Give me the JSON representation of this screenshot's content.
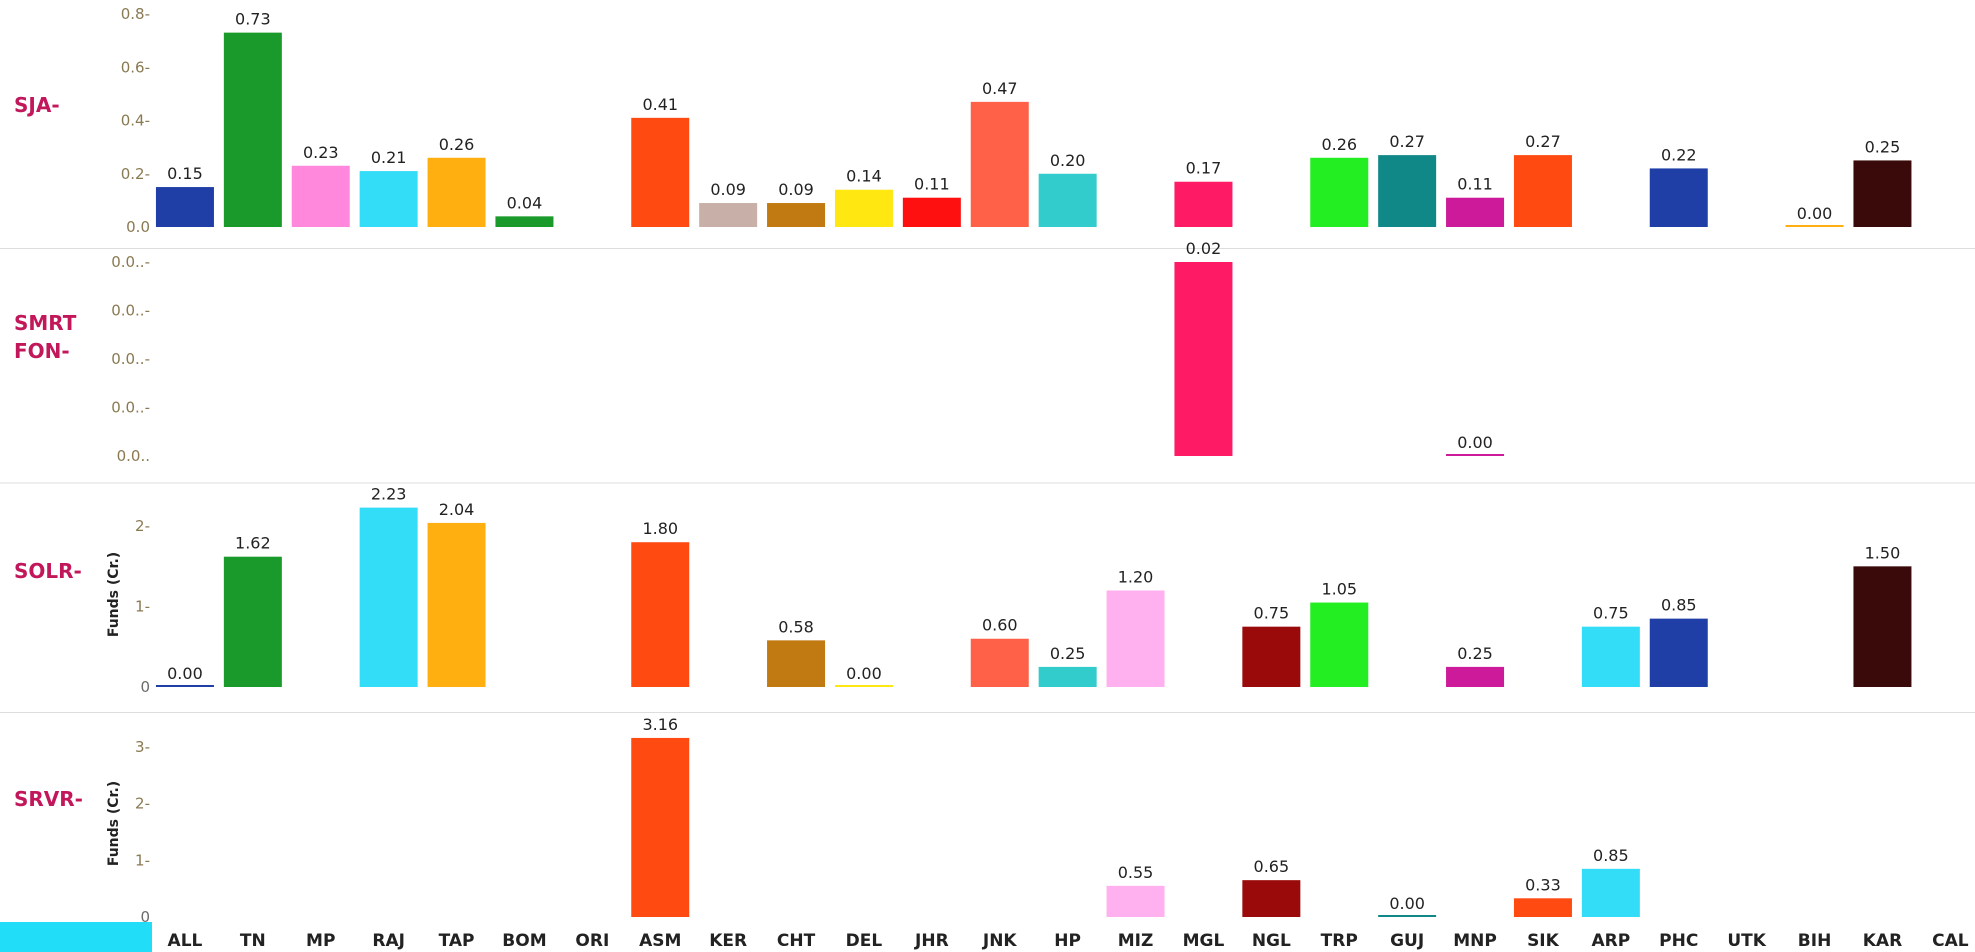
{
  "chart_data": {
    "type": "bar",
    "categories": [
      "ALL",
      "TN",
      "MP",
      "RAJ",
      "TAP",
      "BOM",
      "ORI",
      "ASM",
      "KER",
      "CHT",
      "DEL",
      "JHR",
      "JNK",
      "HP",
      "MIZ",
      "MGL",
      "NGL",
      "TRP",
      "GUJ",
      "MNP",
      "SIK",
      "ARP",
      "PHC",
      "UTK",
      "BIH",
      "KAR",
      "CAL"
    ],
    "colors": [
      "#1f3fa6",
      "#1a9a2a",
      "#ff88dd",
      "#33ddf7",
      "#ffb010",
      "#1a9a2a",
      "#999999",
      "#ff4a12",
      "#c8b0a8",
      "#c17a12",
      "#ffe812",
      "#ff1010",
      "#ff6048",
      "#33cccc",
      "#ffb0ee",
      "#ff1a66",
      "#9a0a0a",
      "#22ee22",
      "#118888",
      "#cc1a9a",
      "#ff4a12",
      "#33ddf7",
      "#1f3fa6",
      "#999999",
      "#ffb010",
      "#3a0a0a",
      "#999999"
    ],
    "legend_swatch_color": "#22ddf7",
    "panels": [
      {
        "name": "SJA-",
        "ylabel": "",
        "ylim": [
          0,
          0.8
        ],
        "ticks": [
          {
            "v": 0.0,
            "label": "0.0"
          },
          {
            "v": 0.2,
            "label": "0.2-"
          },
          {
            "v": 0.4,
            "label": "0.4-"
          },
          {
            "v": 0.6,
            "label": "0.6-"
          },
          {
            "v": 0.8,
            "label": "0.8-"
          }
        ],
        "values": [
          0.15,
          0.73,
          0.23,
          0.21,
          0.26,
          0.04,
          null,
          0.41,
          0.09,
          0.09,
          0.14,
          0.11,
          0.47,
          0.2,
          null,
          0.17,
          null,
          0.26,
          0.27,
          0.11,
          0.27,
          null,
          0.22,
          null,
          0.0,
          0.25,
          null
        ],
        "labels": [
          "0.15",
          "0.73",
          "0.23",
          "0.21",
          "0.26",
          "0.04",
          "",
          "0.41",
          "0.09",
          "0.09",
          "0.14",
          "0.11",
          "0.47",
          "0.20",
          "",
          "0.17",
          "",
          "0.26",
          "0.27",
          "0.11",
          "0.27",
          "",
          "0.22",
          "",
          "0.00",
          "0.25",
          ""
        ],
        "colors": {
          "GUJ": "#118888",
          "SIK": "#ff4a12",
          "BIH": "#ffb010"
        }
      },
      {
        "name": "SMRT FON-",
        "ylabel": "",
        "ylim": [
          0,
          0.02
        ],
        "ticks": [
          {
            "v": 0.0,
            "label": "0.0.."
          },
          {
            "v": 0.005,
            "label": "0.0..-"
          },
          {
            "v": 0.01,
            "label": "0.0..-"
          },
          {
            "v": 0.015,
            "label": "0.0..-"
          },
          {
            "v": 0.02,
            "label": "0.0..-"
          }
        ],
        "values": [
          null,
          null,
          null,
          null,
          null,
          null,
          null,
          null,
          null,
          null,
          null,
          null,
          null,
          null,
          null,
          0.02,
          null,
          null,
          null,
          0.0,
          null,
          null,
          null,
          null,
          null,
          null,
          null
        ],
        "labels": [
          "",
          "",
          "",
          "",
          "",
          "",
          "",
          "",
          "",
          "",
          "",
          "",
          "",
          "",
          "",
          "0.02",
          "",
          "",
          "",
          "0.00",
          "",
          "",
          "",
          "",
          "",
          "",
          ""
        ],
        "colors": {}
      },
      {
        "name": "SOLR-",
        "ylabel": "Funds (Cr.)",
        "ylim": [
          0,
          2.3
        ],
        "ticks": [
          {
            "v": 0,
            "label": "0"
          },
          {
            "v": 1,
            "label": "1-"
          },
          {
            "v": 2,
            "label": "2-"
          }
        ],
        "values": [
          0.0,
          1.62,
          null,
          2.23,
          2.04,
          null,
          null,
          1.8,
          null,
          0.58,
          0.0,
          null,
          0.6,
          0.25,
          1.2,
          null,
          0.75,
          1.05,
          null,
          0.25,
          null,
          0.75,
          0.85,
          null,
          null,
          1.5,
          null
        ],
        "labels": [
          "0.00",
          "1.62",
          "",
          "2.23",
          "2.04",
          "",
          "",
          "1.80",
          "",
          "0.58",
          "0.00",
          "",
          "0.60",
          "0.25",
          "1.20",
          "",
          "0.75",
          "1.05",
          "",
          "0.25",
          "",
          "0.75",
          "0.85",
          "",
          "",
          "1.50",
          ""
        ],
        "colors": {}
      },
      {
        "name": "SRVR-",
        "ylabel": "Funds (Cr.)",
        "ylim": [
          0,
          3.3
        ],
        "ticks": [
          {
            "v": 0,
            "label": "0"
          },
          {
            "v": 1,
            "label": "1-"
          },
          {
            "v": 2,
            "label": "2-"
          },
          {
            "v": 3,
            "label": "3-"
          }
        ],
        "values": [
          null,
          null,
          null,
          null,
          null,
          null,
          null,
          3.16,
          null,
          null,
          null,
          null,
          null,
          null,
          0.55,
          null,
          0.65,
          null,
          0.0,
          null,
          0.33,
          0.85,
          null,
          null,
          null,
          null,
          null
        ],
        "labels": [
          "",
          "",
          "",
          "",
          "",
          "",
          "",
          "3.16",
          "",
          "",
          "",
          "",
          "",
          "",
          "0.55",
          "",
          "0.65",
          "",
          "0.00",
          "",
          "0.33",
          "0.85",
          "",
          "",
          "",
          "",
          ""
        ],
        "colors": {}
      }
    ]
  }
}
